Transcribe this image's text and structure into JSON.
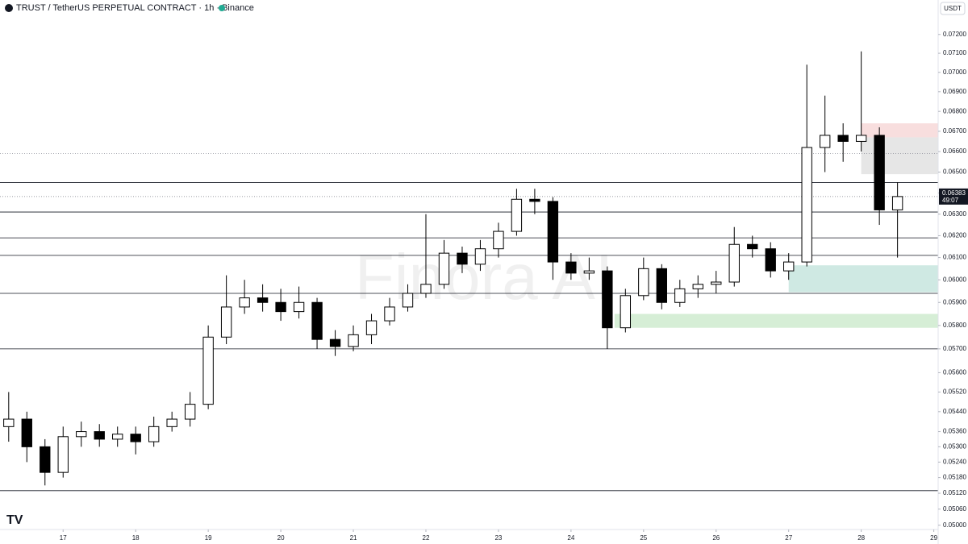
{
  "chart_data": {
    "type": "candlestick",
    "title": "TRUST / TetherUS PERPETUAL CONTRACT · 1h · Binance",
    "currency": "USDT",
    "watermark": "Finora AI",
    "log_scale": true,
    "up_color": "#ffffff",
    "down_color": "#000000",
    "x": [
      16.25,
      16.5,
      16.75,
      17,
      17.25,
      17.5,
      17.75,
      18,
      18.25,
      18.5,
      18.75,
      19,
      19.25,
      19.5,
      19.75,
      20,
      20.25,
      20.5,
      20.75,
      21,
      21.25,
      21.5,
      21.75,
      22,
      22.25,
      22.5,
      22.75,
      23,
      23.25,
      23.5,
      23.75,
      24,
      24.25,
      24.5,
      24.75,
      25,
      25.25,
      25.5,
      25.75,
      26,
      26.25,
      26.5,
      26.75,
      27,
      27.25,
      27.5,
      27.75,
      28,
      28.25,
      28.5
    ],
    "open": [
      0.0538,
      0.0541,
      0.053,
      0.052,
      0.0534,
      0.0536,
      0.0533,
      0.0535,
      0.0532,
      0.0538,
      0.0541,
      0.0547,
      0.0575,
      0.0588,
      0.0592,
      0.059,
      0.0586,
      0.059,
      0.0574,
      0.0571,
      0.0576,
      0.0582,
      0.0588,
      0.0594,
      0.0598,
      0.0612,
      0.0607,
      0.0614,
      0.0622,
      0.0637,
      0.0636,
      0.0608,
      0.0603,
      0.0604,
      0.0579,
      0.0593,
      0.0605,
      0.059,
      0.0596,
      0.0598,
      0.0599,
      0.0616,
      0.0614,
      0.0604,
      0.0608,
      0.0662,
      0.0668,
      0.0665,
      0.0668,
      0.0632
    ],
    "high": [
      0.0552,
      0.0544,
      0.0533,
      0.0538,
      0.054,
      0.0539,
      0.0538,
      0.0538,
      0.0542,
      0.0544,
      0.0552,
      0.058,
      0.0602,
      0.06,
      0.0598,
      0.0596,
      0.0597,
      0.0592,
      0.0578,
      0.058,
      0.0585,
      0.0592,
      0.0598,
      0.063,
      0.0618,
      0.0615,
      0.0618,
      0.0626,
      0.0642,
      0.0642,
      0.0638,
      0.0612,
      0.061,
      0.0606,
      0.0596,
      0.061,
      0.0607,
      0.06,
      0.0602,
      0.0604,
      0.0624,
      0.062,
      0.0617,
      0.0612,
      0.0704,
      0.0688,
      0.0674,
      0.0711,
      0.0672,
      0.0645
    ],
    "low": [
      0.0532,
      0.0524,
      0.0515,
      0.0518,
      0.053,
      0.053,
      0.053,
      0.0527,
      0.053,
      0.0536,
      0.0538,
      0.0545,
      0.0572,
      0.0585,
      0.0586,
      0.0582,
      0.0583,
      0.057,
      0.0567,
      0.0569,
      0.0572,
      0.058,
      0.0586,
      0.0592,
      0.0596,
      0.0603,
      0.0604,
      0.061,
      0.062,
      0.063,
      0.06,
      0.06,
      0.06,
      0.057,
      0.0577,
      0.0591,
      0.0587,
      0.0588,
      0.0592,
      0.0594,
      0.0597,
      0.061,
      0.0601,
      0.06,
      0.0606,
      0.065,
      0.0655,
      0.066,
      0.0625,
      0.061
    ],
    "close": [
      0.0541,
      0.053,
      0.052,
      0.0534,
      0.0536,
      0.0533,
      0.0535,
      0.0532,
      0.0538,
      0.0541,
      0.0547,
      0.0575,
      0.0588,
      0.0592,
      0.059,
      0.0586,
      0.059,
      0.0574,
      0.0571,
      0.0576,
      0.0582,
      0.0588,
      0.0594,
      0.0598,
      0.0612,
      0.0607,
      0.0614,
      0.0622,
      0.0637,
      0.0636,
      0.0608,
      0.0603,
      0.0604,
      0.0579,
      0.0593,
      0.0605,
      0.059,
      0.0596,
      0.0598,
      0.0599,
      0.0616,
      0.0614,
      0.0604,
      0.0608,
      0.0662,
      0.0668,
      0.0665,
      0.0668,
      0.0632,
      0.06383
    ],
    "levels": [
      0.0645,
      0.0631,
      0.0619,
      0.0611,
      0.0594,
      0.057,
      0.0513
    ],
    "dotted_levels": [
      0.0659,
      0.06383
    ],
    "zones": [
      {
        "from": 28.0,
        "top": 0.0674,
        "bottom": 0.0667,
        "color": "#f8dede"
      },
      {
        "from": 28.0,
        "top": 0.0667,
        "bottom": 0.0649,
        "color": "#e6e6e6"
      },
      {
        "from": 27.0,
        "top": 0.06065,
        "bottom": 0.05945,
        "color": "#cfe9e3"
      },
      {
        "from": 24.6,
        "top": 0.0585,
        "bottom": 0.0579,
        "color": "#d6eed6"
      }
    ],
    "last_price": 0.06383,
    "countdown": "49:07",
    "xlim": [
      16.13,
      29.06
    ],
    "xticks": [
      17,
      18,
      19,
      20,
      21,
      22,
      23,
      24,
      25,
      26,
      27,
      28,
      29
    ],
    "ylim": [
      0.0499,
      0.0729
    ],
    "yticks": [
      {
        "value": 0.072,
        "label": "0.07200"
      },
      {
        "value": 0.071,
        "label": "0.07100"
      },
      {
        "value": 0.07,
        "label": "0.07000"
      },
      {
        "value": 0.069,
        "label": "0.06900"
      },
      {
        "value": 0.068,
        "label": "0.06800"
      },
      {
        "value": 0.067,
        "label": "0.06700"
      },
      {
        "value": 0.066,
        "label": "0.06600"
      },
      {
        "value": 0.065,
        "label": "0.06500"
      },
      {
        "value": 0.064,
        "label": "0.06400"
      },
      {
        "value": 0.063,
        "label": "0.06300"
      },
      {
        "value": 0.062,
        "label": "0.06200"
      },
      {
        "value": 0.061,
        "label": "0.06100"
      },
      {
        "value": 0.06,
        "label": "0.06000"
      },
      {
        "value": 0.059,
        "label": "0.05900"
      },
      {
        "value": 0.058,
        "label": "0.05800"
      },
      {
        "value": 0.057,
        "label": "0.05700"
      },
      {
        "value": 0.056,
        "label": "0.05600"
      },
      {
        "value": 0.0552,
        "label": "0.05520"
      },
      {
        "value": 0.0544,
        "label": "0.05440"
      },
      {
        "value": 0.0536,
        "label": "0.05360"
      },
      {
        "value": 0.053,
        "label": "0.05300"
      },
      {
        "value": 0.0524,
        "label": "0.05240"
      },
      {
        "value": 0.0518,
        "label": "0.05180"
      },
      {
        "value": 0.0512,
        "label": "0.05120"
      },
      {
        "value": 0.0506,
        "label": "0.05060"
      },
      {
        "value": 0.05,
        "label": "0.05000"
      }
    ]
  }
}
